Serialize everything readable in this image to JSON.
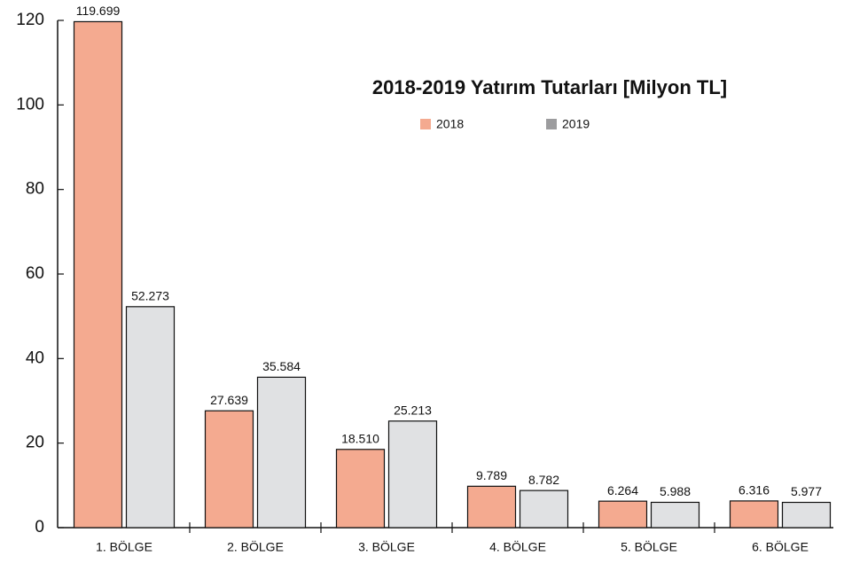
{
  "chart_data": {
    "type": "bar",
    "title": "2018-2019 Yatırım Tutarları [Milyon TL]",
    "categories": [
      "1. BÖLGE",
      "2. BÖLGE",
      "3. BÖLGE",
      "4. BÖLGE",
      "5. BÖLGE",
      "6. BÖLGE"
    ],
    "series": [
      {
        "name": "2018",
        "color": "#f4aa90",
        "values": [
          119.699,
          27.639,
          18.51,
          9.789,
          6.264,
          6.316
        ],
        "value_labels": [
          "119.699",
          "27.639",
          "18.510",
          "9.789",
          "6.264",
          "6.316"
        ]
      },
      {
        "name": "2019",
        "color": "#e0e1e3",
        "values": [
          52.273,
          35.584,
          25.213,
          8.782,
          5.988,
          5.977
        ],
        "value_labels": [
          "52.273",
          "35.584",
          "25.213",
          "8.782",
          "5.988",
          "5.977"
        ]
      }
    ],
    "ylim": [
      0,
      120
    ],
    "yticks": [
      0,
      20,
      40,
      60,
      80,
      100,
      120
    ],
    "grid": false
  }
}
